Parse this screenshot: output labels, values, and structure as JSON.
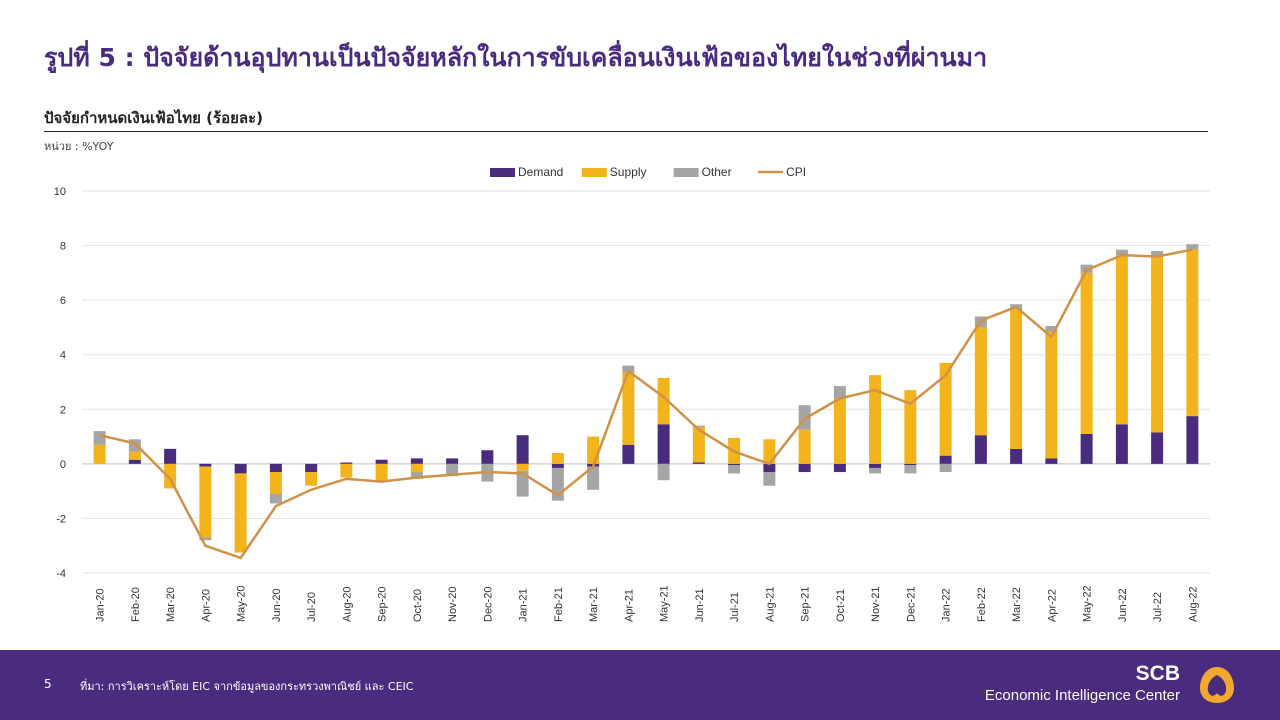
{
  "page": {
    "title": "รูปที่ 5 : ปัจจัยด้านอุปทานเป็นปัจจัยหลักในการขับเคลื่อนเงินเฟ้อของไทยในช่วงที่ผ่านมา",
    "subtitle": "ปัจจัยกำหนดเงินเฟ้อไทย (ร้อยละ)",
    "unit": "หน่วย : %YOY"
  },
  "footer": {
    "page_number": "5",
    "source": "ที่มา: การวิเคราะห์โดย EIC จากข้อมูลของกระทรวงพาณิชย์ และ CEIC",
    "brand_name": "SCB",
    "brand_sub": "Economic Intelligence Center"
  },
  "colors": {
    "demand": "#4a2c7e",
    "supply": "#f2b31b",
    "other": "#a5a5a5",
    "cpi": "#d0924a",
    "brand": "#4a2c7e",
    "logo": "#f0a830"
  },
  "chart_data": {
    "type": "bar",
    "stacked": true,
    "legend_position": "top-center",
    "grid": true,
    "ylim": [
      -4,
      10
    ],
    "yticks": [
      -4,
      -2,
      0,
      2,
      4,
      6,
      8,
      10
    ],
    "categories": [
      "Jan-20",
      "Feb-20",
      "Mar-20",
      "Apr-20",
      "May-20",
      "Jun-20",
      "Jul-20",
      "Aug-20",
      "Sep-20",
      "Oct-20",
      "Nov-20",
      "Dec-20",
      "Jan-21",
      "Feb-21",
      "Mar-21",
      "Apr-21",
      "May-21",
      "Jun-21",
      "Jul-21",
      "Aug-21",
      "Sep-21",
      "Oct-21",
      "Nov-21",
      "Dec-21",
      "Jan-22",
      "Feb-22",
      "Mar-22",
      "Apr-22",
      "May-22",
      "Jun-22",
      "Jul-22",
      "Aug-22"
    ],
    "series": [
      {
        "name": "Demand",
        "kind": "bar",
        "values": [
          0.0,
          0.15,
          0.55,
          -0.1,
          -0.35,
          -0.3,
          -0.3,
          0.05,
          0.15,
          0.2,
          0.2,
          0.5,
          1.05,
          -0.15,
          -0.1,
          0.7,
          1.45,
          0.05,
          -0.05,
          -0.3,
          -0.3,
          -0.3,
          -0.15,
          -0.05,
          0.3,
          1.05,
          0.55,
          0.2,
          1.1,
          1.45,
          1.15,
          1.75
        ]
      },
      {
        "name": "Supply",
        "kind": "bar",
        "values": [
          0.7,
          0.3,
          -0.9,
          -2.6,
          -2.9,
          -0.8,
          -0.5,
          -0.5,
          -0.65,
          -0.3,
          0.0,
          0.0,
          -0.25,
          0.4,
          1.0,
          2.65,
          1.7,
          1.3,
          0.95,
          0.9,
          1.25,
          2.4,
          3.25,
          2.7,
          3.4,
          3.95,
          5.1,
          4.65,
          5.9,
          6.2,
          6.45,
          6.1
        ]
      },
      {
        "name": "Other",
        "kind": "bar",
        "values": [
          0.5,
          0.45,
          0.0,
          -0.1,
          0.0,
          -0.35,
          0.0,
          0.0,
          0.0,
          -0.25,
          -0.45,
          -0.65,
          -0.95,
          -1.2,
          -0.85,
          0.25,
          -0.6,
          0.05,
          -0.3,
          -0.5,
          0.9,
          0.45,
          -0.2,
          -0.3,
          -0.3,
          0.4,
          0.2,
          0.2,
          0.3,
          0.2,
          0.2,
          0.2
        ]
      },
      {
        "name": "CPI",
        "kind": "line",
        "values": [
          1.05,
          0.75,
          -0.55,
          -3.0,
          -3.45,
          -1.55,
          -0.95,
          -0.55,
          -0.65,
          -0.5,
          -0.4,
          -0.3,
          -0.35,
          -1.15,
          -0.1,
          3.4,
          2.45,
          1.25,
          0.45,
          0.0,
          1.65,
          2.4,
          2.7,
          2.2,
          3.25,
          5.25,
          5.75,
          4.65,
          7.1,
          7.65,
          7.6,
          7.85
        ]
      }
    ]
  }
}
